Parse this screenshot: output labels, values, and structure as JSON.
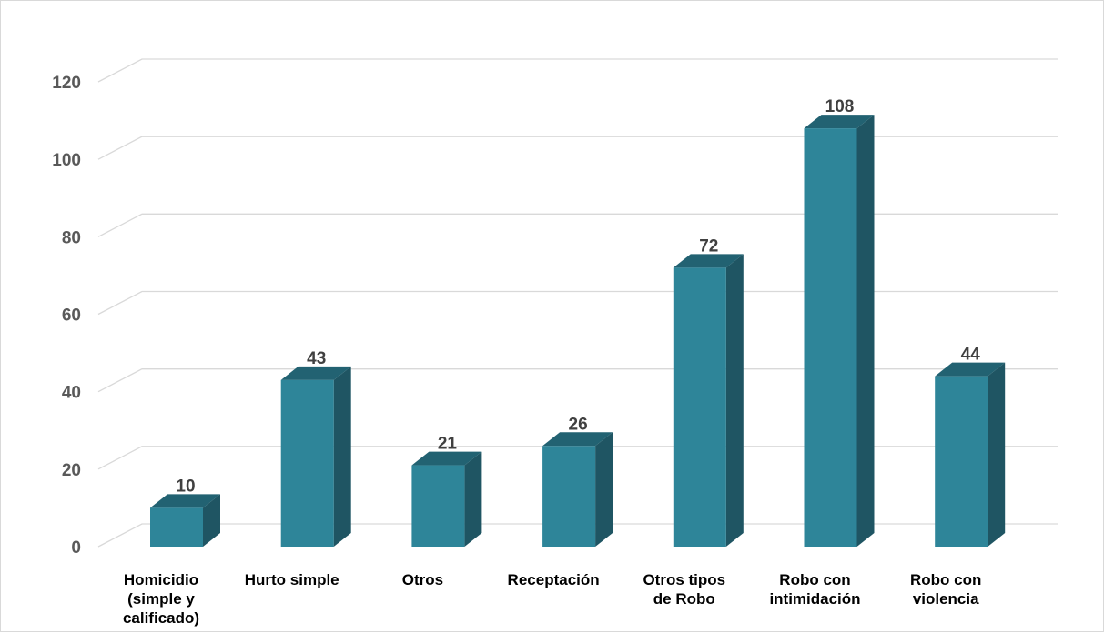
{
  "chart_data": {
    "type": "bar",
    "title": "",
    "xlabel": "",
    "ylabel": "",
    "categories": [
      [
        "Homicidio",
        "(simple y",
        "calificado)"
      ],
      [
        "Hurto simple"
      ],
      [
        "Otros"
      ],
      [
        "Receptación"
      ],
      [
        "Otros tipos",
        "de Robo"
      ],
      [
        "Robo con",
        "intimidación"
      ],
      [
        "Robo con",
        "violencia"
      ]
    ],
    "values": [
      10,
      43,
      21,
      26,
      72,
      108,
      44
    ],
    "data_labels": [
      "10",
      "43",
      "21",
      "26",
      "72",
      "108",
      "44"
    ],
    "ylim": [
      0,
      120
    ],
    "yticks": [
      "0",
      "20",
      "40",
      "60",
      "80",
      "100",
      "120"
    ],
    "grid": true,
    "legend": "none",
    "colors": {
      "bar_front": "#2e8599",
      "bar_side": "#1f5563",
      "bar_top": "#226272",
      "gridline": "#d9d9d9"
    }
  }
}
